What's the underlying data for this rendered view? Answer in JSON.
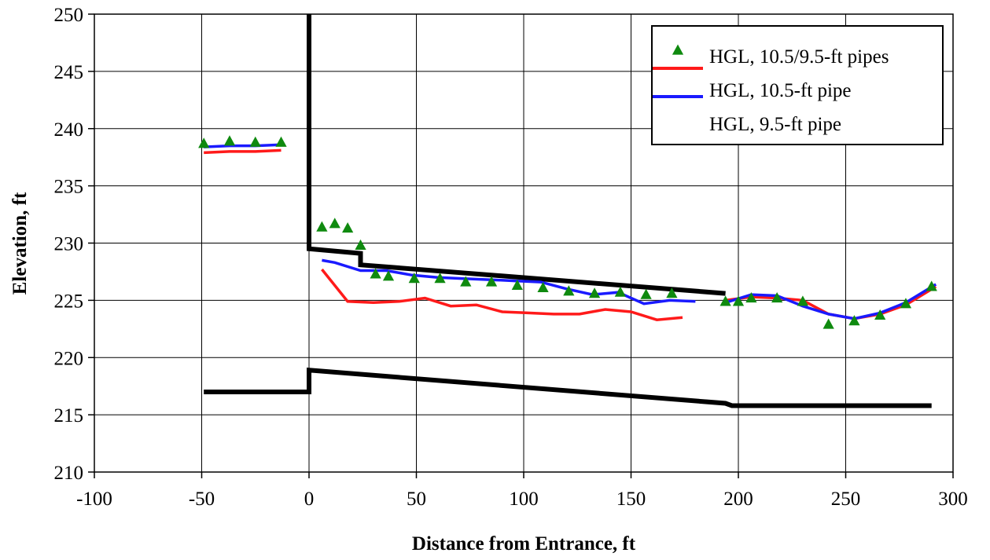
{
  "chart_data": {
    "type": "line",
    "title": "",
    "xlabel": "Distance from Entrance, ft",
    "ylabel": "Elevation, ft",
    "xlim": [
      -100,
      300
    ],
    "ylim": [
      210,
      250
    ],
    "x_ticks": [
      -100,
      -50,
      0,
      50,
      100,
      150,
      200,
      250,
      300
    ],
    "y_ticks": [
      210,
      215,
      220,
      225,
      230,
      235,
      240,
      245,
      250
    ],
    "x_tick_labels": [
      "-100",
      "-50",
      "0",
      "50",
      "100",
      "150",
      "200",
      "250",
      "300"
    ],
    "y_tick_labels": [
      "210",
      "215",
      "220",
      "225",
      "230",
      "235",
      "240",
      "245",
      "250"
    ],
    "grid": true,
    "legend_position": "top-right",
    "legend": [
      {
        "label": "HGL, 10.5/9.5-ft pipes",
        "kind": "marker",
        "color": "#0f8a0f"
      },
      {
        "label": "HGL, 10.5-ft pipe",
        "kind": "line",
        "color": "#ff1a1a"
      },
      {
        "label": "HGL, 9.5-ft pipe",
        "kind": "line",
        "color": "#1a1aff"
      }
    ],
    "series": [
      {
        "name": "HGL, 10.5/9.5-ft pipes",
        "style": "marker",
        "color": "#0f8a0f",
        "points": [
          [
            -49,
            238.7
          ],
          [
            -37,
            238.9
          ],
          [
            -25,
            238.8
          ],
          [
            -13,
            238.8
          ],
          [
            6,
            231.4
          ],
          [
            12,
            231.7
          ],
          [
            18,
            231.3
          ],
          [
            24,
            229.8
          ],
          [
            31,
            227.3
          ],
          [
            37,
            227.1
          ],
          [
            49,
            226.9
          ],
          [
            61,
            226.9
          ],
          [
            73,
            226.6
          ],
          [
            85,
            226.6
          ],
          [
            97,
            226.3
          ],
          [
            109,
            226.1
          ],
          [
            121,
            225.8
          ],
          [
            133,
            225.6
          ],
          [
            145,
            225.7
          ],
          [
            157,
            225.5
          ],
          [
            169,
            225.6
          ],
          [
            194,
            224.9
          ],
          [
            200,
            224.9
          ],
          [
            206,
            225.2
          ],
          [
            218,
            225.2
          ],
          [
            230,
            224.9
          ],
          [
            242,
            222.9
          ],
          [
            254,
            223.2
          ],
          [
            266,
            223.7
          ],
          [
            278,
            224.7
          ],
          [
            290,
            226.2
          ]
        ]
      },
      {
        "name": "HGL, 10.5-ft pipe",
        "style": "line",
        "color": "#ff1a1a",
        "segments": [
          [
            [
              -49,
              237.9
            ],
            [
              -37,
              238.0
            ],
            [
              -25,
              238.0
            ],
            [
              -13,
              238.1
            ]
          ],
          [
            [
              6,
              227.7
            ],
            [
              18,
              224.9
            ],
            [
              30,
              224.8
            ],
            [
              42,
              224.9
            ],
            [
              54,
              225.2
            ],
            [
              66,
              224.5
            ],
            [
              78,
              224.6
            ],
            [
              90,
              224.0
            ],
            [
              102,
              223.9
            ],
            [
              114,
              223.8
            ],
            [
              126,
              223.8
            ],
            [
              138,
              224.2
            ],
            [
              150,
              224.0
            ],
            [
              162,
              223.3
            ],
            [
              174,
              223.5
            ]
          ],
          [
            [
              194,
              225.0
            ],
            [
              206,
              225.3
            ],
            [
              218,
              225.2
            ],
            [
              230,
              225.0
            ],
            [
              242,
              223.8
            ],
            [
              254,
              223.4
            ],
            [
              266,
              223.8
            ],
            [
              278,
              224.6
            ],
            [
              292,
              226.2
            ]
          ]
        ]
      },
      {
        "name": "HGL, 9.5-ft pipe",
        "style": "line",
        "color": "#1a1aff",
        "segments": [
          [
            [
              -49,
              238.4
            ],
            [
              -37,
              238.5
            ],
            [
              -25,
              238.5
            ],
            [
              -13,
              238.6
            ]
          ],
          [
            [
              6,
              228.5
            ],
            [
              12,
              228.3
            ],
            [
              24,
              227.6
            ],
            [
              36,
              227.6
            ],
            [
              48,
              227.2
            ],
            [
              60,
              227.0
            ],
            [
              72,
              226.9
            ],
            [
              84,
              226.8
            ],
            [
              96,
              226.7
            ],
            [
              108,
              226.6
            ],
            [
              120,
              226.0
            ],
            [
              132,
              225.5
            ],
            [
              144,
              225.7
            ],
            [
              156,
              224.7
            ],
            [
              168,
              225.0
            ],
            [
              180,
              224.9
            ]
          ],
          [
            [
              194,
              224.8
            ],
            [
              206,
              225.5
            ],
            [
              218,
              225.4
            ],
            [
              230,
              224.5
            ],
            [
              242,
              223.8
            ],
            [
              254,
              223.4
            ],
            [
              266,
              223.9
            ],
            [
              278,
              224.8
            ],
            [
              292,
              226.4
            ]
          ]
        ]
      },
      {
        "name": "",
        "style": "line",
        "color": "#000000",
        "segments": [
          [
            [
              0,
              250
            ],
            [
              0,
              229.5
            ],
            [
              24,
              229.1
            ],
            [
              24,
              228.1
            ],
            [
              194,
              225.6
            ]
          ],
          [
            [
              -49,
              217.0
            ],
            [
              0,
              217.0
            ],
            [
              0,
              218.9
            ],
            [
              194,
              216.0
            ],
            [
              197,
              215.8
            ],
            [
              290,
              215.8
            ]
          ]
        ]
      }
    ]
  }
}
